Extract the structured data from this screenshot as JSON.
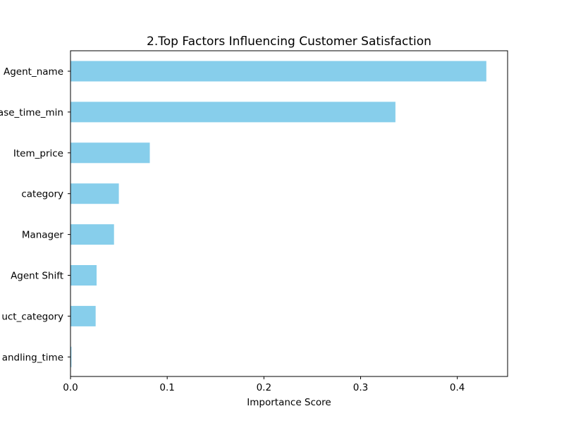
{
  "chart_data": {
    "type": "bar",
    "orientation": "horizontal",
    "title": "2.Top Factors Influencing Customer Satisfaction",
    "xlabel": "Importance Score",
    "ylabel": "",
    "categories": [
      "Agent_name",
      "ase_time_min",
      "Item_price",
      "category",
      "Manager",
      "Agent Shift",
      "uct_category",
      "andling_time"
    ],
    "values": [
      0.43,
      0.336,
      0.082,
      0.05,
      0.045,
      0.027,
      0.026,
      0.001
    ],
    "xlim": [
      0,
      0.452
    ],
    "xticks": [
      0.0,
      0.1,
      0.2,
      0.3,
      0.4
    ],
    "xtick_labels": [
      "0.0",
      "0.1",
      "0.2",
      "0.3",
      "0.4"
    ],
    "grid": false,
    "bar_color": "#87CEEB"
  }
}
